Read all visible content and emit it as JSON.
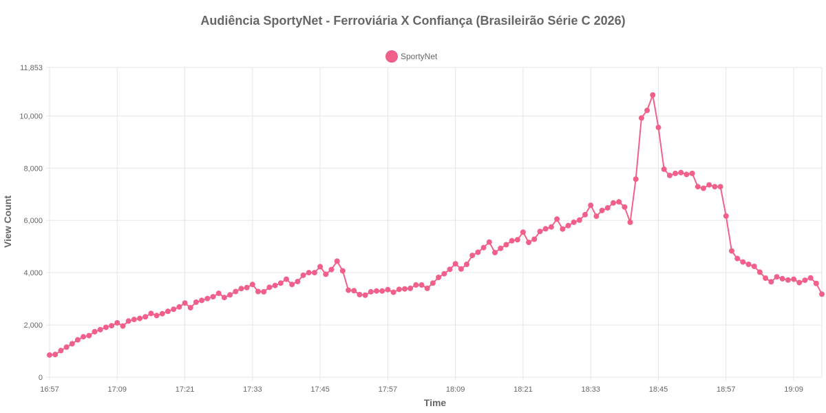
{
  "colors": {
    "series": "#f0608a",
    "grid": "#e5e5e5",
    "text": "#666666"
  },
  "chart_data": {
    "type": "line",
    "title": "Audiência SportyNet - Ferroviária X Confiança (Brasileirão Série C 2026)",
    "xlabel": "Time",
    "ylabel": "View Count",
    "legend": {
      "position": "top-center",
      "entries": [
        "SportyNet"
      ]
    },
    "grid": true,
    "ylim": [
      0,
      11853
    ],
    "yticks": [
      0,
      2000,
      4000,
      6000,
      8000,
      10000,
      11853
    ],
    "ytick_labels": [
      "0",
      "2,000",
      "4,000",
      "6,000",
      "8,000",
      "10,000",
      "11,853"
    ],
    "xlim": [
      "16:57",
      "19:14"
    ],
    "xticks": [
      "16:57",
      "17:09",
      "17:21",
      "17:33",
      "17:45",
      "17:57",
      "18:09",
      "18:21",
      "18:33",
      "18:45",
      "18:57",
      "19:09"
    ],
    "series": [
      {
        "name": "SportyNet",
        "x": [
          "16:57",
          "16:58",
          "16:59",
          "17:00",
          "17:01",
          "17:02",
          "17:03",
          "17:04",
          "17:05",
          "17:06",
          "17:07",
          "17:08",
          "17:09",
          "17:10",
          "17:11",
          "17:12",
          "17:13",
          "17:14",
          "17:15",
          "17:16",
          "17:17",
          "17:18",
          "17:19",
          "17:20",
          "17:21",
          "17:22",
          "17:23",
          "17:24",
          "17:25",
          "17:26",
          "17:27",
          "17:28",
          "17:29",
          "17:30",
          "17:31",
          "17:32",
          "17:33",
          "17:34",
          "17:35",
          "17:36",
          "17:37",
          "17:38",
          "17:39",
          "17:40",
          "17:41",
          "17:42",
          "17:43",
          "17:44",
          "17:45",
          "17:46",
          "17:47",
          "17:48",
          "17:49",
          "17:50",
          "17:51",
          "17:52",
          "17:53",
          "17:54",
          "17:55",
          "17:56",
          "17:57",
          "17:58",
          "17:59",
          "18:00",
          "18:01",
          "18:02",
          "18:03",
          "18:04",
          "18:05",
          "18:06",
          "18:07",
          "18:08",
          "18:09",
          "18:10",
          "18:11",
          "18:12",
          "18:13",
          "18:14",
          "18:15",
          "18:16",
          "18:17",
          "18:18",
          "18:19",
          "18:20",
          "18:21",
          "18:22",
          "18:23",
          "18:24",
          "18:25",
          "18:26",
          "18:27",
          "18:28",
          "18:29",
          "18:30",
          "18:31",
          "18:32",
          "18:33",
          "18:34",
          "18:35",
          "18:36",
          "18:37",
          "18:38",
          "18:39",
          "18:40",
          "18:41",
          "18:42",
          "18:43",
          "18:44",
          "18:45",
          "18:46",
          "18:47",
          "18:48",
          "18:49",
          "18:50",
          "18:51",
          "18:52",
          "18:53",
          "18:54",
          "18:55",
          "18:56",
          "18:57",
          "18:58",
          "18:59",
          "19:00",
          "19:01",
          "19:02",
          "19:03",
          "19:04",
          "19:05",
          "19:06",
          "19:07",
          "19:08",
          "19:09",
          "19:10",
          "19:11",
          "19:12",
          "19:13",
          "19:14"
        ],
        "y": [
          850,
          870,
          1020,
          1150,
          1280,
          1430,
          1550,
          1590,
          1740,
          1820,
          1910,
          1970,
          2080,
          1960,
          2150,
          2210,
          2250,
          2310,
          2440,
          2360,
          2430,
          2520,
          2600,
          2690,
          2840,
          2660,
          2870,
          2940,
          3010,
          3080,
          3210,
          3050,
          3150,
          3280,
          3390,
          3430,
          3550,
          3280,
          3270,
          3440,
          3510,
          3600,
          3750,
          3550,
          3660,
          3900,
          4000,
          4000,
          4230,
          3940,
          4120,
          4440,
          4070,
          3330,
          3310,
          3160,
          3140,
          3270,
          3300,
          3300,
          3350,
          3250,
          3360,
          3380,
          3400,
          3530,
          3530,
          3400,
          3600,
          3820,
          3960,
          4130,
          4340,
          4140,
          4320,
          4660,
          4780,
          4960,
          5170,
          4770,
          4930,
          5070,
          5220,
          5260,
          5550,
          5160,
          5280,
          5580,
          5680,
          5750,
          6050,
          5670,
          5800,
          5930,
          6010,
          6220,
          6580,
          6160,
          6380,
          6480,
          6670,
          6710,
          6510,
          5930,
          7580,
          9920,
          10210,
          10800,
          9560,
          7960,
          7720,
          7800,
          7830,
          7760,
          7800,
          7290,
          7230,
          7360,
          7290,
          7290,
          6170,
          4830,
          4540,
          4410,
          4320,
          4240,
          4020,
          3790,
          3650,
          3840,
          3770,
          3720,
          3750,
          3620,
          3710,
          3800,
          3590,
          3180
        ]
      }
    ]
  }
}
